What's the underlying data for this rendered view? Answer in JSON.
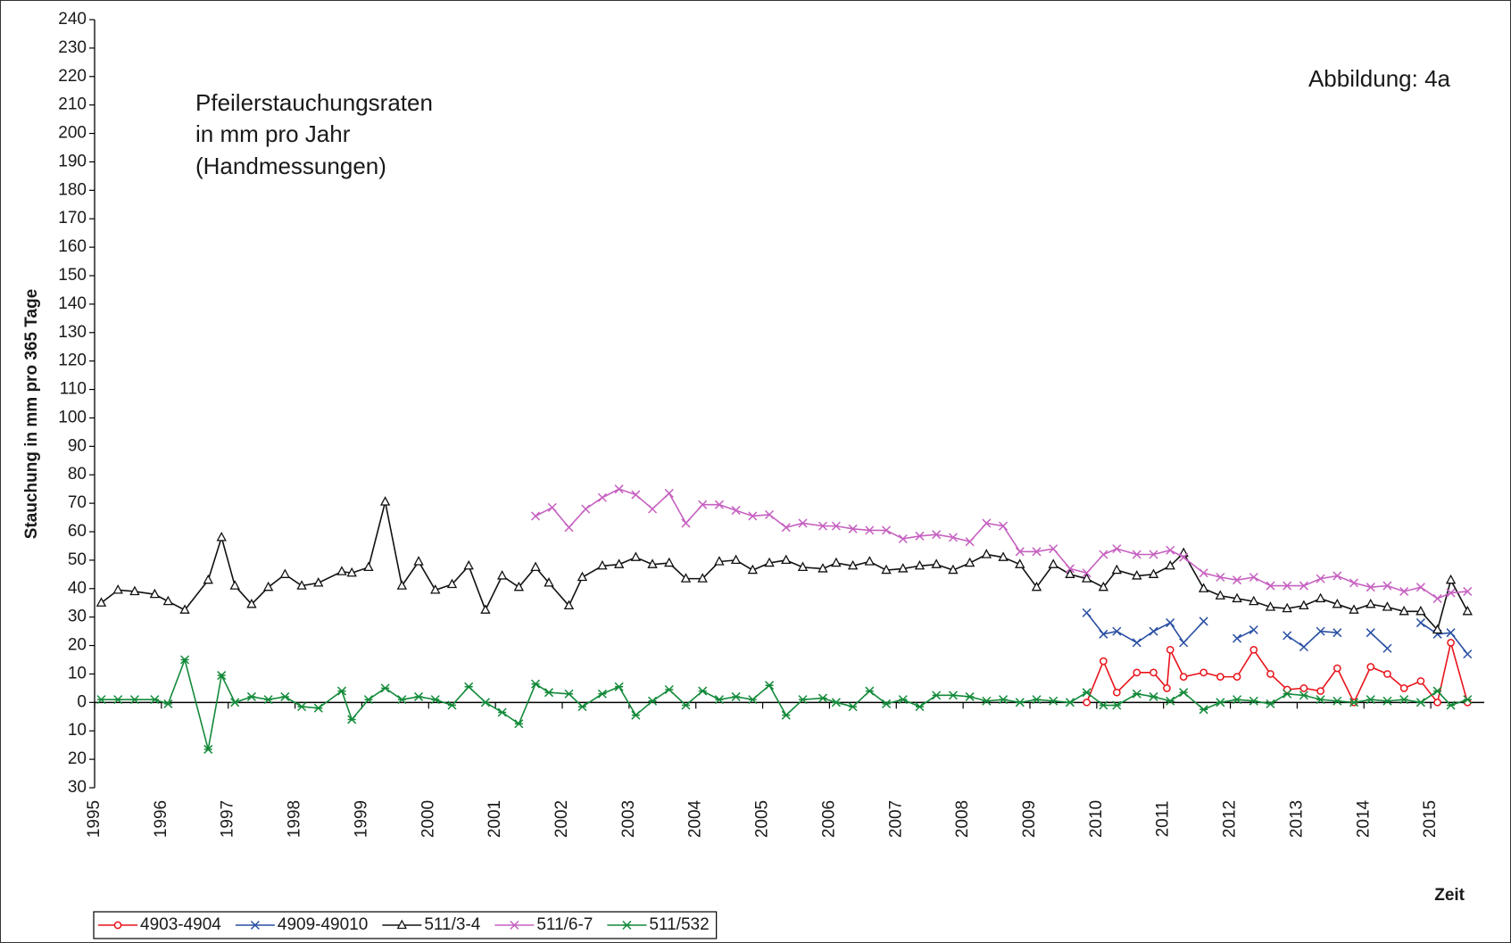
{
  "chart_data": {
    "type": "line",
    "annotation": [
      "Pfeilerstauchungsraten",
      "in mm pro Jahr",
      "(Handmessungen)"
    ],
    "figure_label": "Abbildung:  4a",
    "y_label": "Stauchung in mm pro 365 Tage",
    "x_label": "Zeit",
    "xlim": [
      1995,
      2015.8
    ],
    "xticks": [
      1995,
      1996,
      1997,
      1998,
      1999,
      2000,
      2001,
      2002,
      2003,
      2004,
      2005,
      2006,
      2007,
      2008,
      2009,
      2010,
      2011,
      2012,
      2013,
      2014,
      2015
    ],
    "ylim": [
      -30,
      240
    ],
    "yticks": [
      {
        "value": -30,
        "label": "30"
      },
      {
        "value": -20,
        "label": "20"
      },
      {
        "value": -10,
        "label": "10"
      },
      0,
      10,
      20,
      30,
      40,
      50,
      60,
      70,
      80,
      90,
      100,
      110,
      120,
      130,
      140,
      150,
      160,
      170,
      180,
      190,
      200,
      210,
      220,
      230,
      240
    ],
    "legend": "bottom-left",
    "series": [
      {
        "name": "4903-4904",
        "color": "#e8141b",
        "marker": "circle",
        "x": [
          2009.85,
          2010.1,
          2010.3,
          2010.6,
          2010.85,
          2011.05,
          2011.1,
          2011.3,
          2011.6,
          2011.85,
          2012.1,
          2012.35,
          2012.6,
          2012.85,
          2013.1,
          2013.35,
          2013.6,
          2013.85,
          2014.1,
          2014.35,
          2014.6,
          2014.85,
          2015.1,
          2015.3,
          2015.55
        ],
        "values": [
          0,
          14.5,
          3.5,
          10.5,
          10.5,
          5,
          18.5,
          9,
          10.5,
          9,
          9,
          18.5,
          10,
          4.5,
          5,
          4,
          12,
          0,
          12.5,
          10,
          5,
          7.5,
          0,
          21,
          0
        ]
      },
      {
        "name": "4909-49010",
        "color": "#2a4fa3",
        "marker": "x",
        "x": [
          2009.85,
          2010.1,
          2010.3,
          2010.6,
          2010.85,
          2011.1,
          2011.3,
          2011.6,
          2011.85,
          2012.1,
          2012.35,
          2012.6,
          2012.85,
          2013.1,
          2013.35,
          2013.6,
          2013.85,
          2014.1,
          2014.35,
          2014.6,
          2014.85,
          2015.1,
          2015.3,
          2015.55
        ],
        "values": [
          31.5,
          24,
          25,
          21,
          25,
          28,
          21,
          28.5,
          null,
          22.5,
          25.5,
          null,
          23.5,
          19.5,
          25,
          24.5,
          null,
          24.5,
          19,
          null,
          28,
          24,
          24.5,
          17
        ]
      },
      {
        "name": "511/3-4",
        "color": "#111111",
        "marker": "triangle",
        "x": [
          1995.1,
          1995.35,
          1995.6,
          1995.9,
          1996.1,
          1996.35,
          1996.7,
          1996.9,
          1997.1,
          1997.35,
          1997.6,
          1997.85,
          1998.1,
          1998.35,
          1998.7,
          1998.85,
          1999.1,
          1999.35,
          1999.6,
          1999.85,
          2000.1,
          2000.35,
          2000.6,
          2000.85,
          2001.1,
          2001.35,
          2001.6,
          2001.8,
          2002.1,
          2002.3,
          2002.6,
          2002.85,
          2003.1,
          2003.35,
          2003.6,
          2003.85,
          2004.1,
          2004.35,
          2004.6,
          2004.85,
          2005.1,
          2005.35,
          2005.6,
          2005.9,
          2006.1,
          2006.35,
          2006.6,
          2006.85,
          2007.1,
          2007.35,
          2007.6,
          2007.85,
          2008.1,
          2008.35,
          2008.6,
          2008.85,
          2009.1,
          2009.35,
          2009.6,
          2009.85,
          2010.1,
          2010.3,
          2010.6,
          2010.85,
          2011.1,
          2011.3,
          2011.6,
          2011.85,
          2012.1,
          2012.35,
          2012.6,
          2012.85,
          2013.1,
          2013.35,
          2013.6,
          2013.85,
          2014.1,
          2014.35,
          2014.6,
          2014.85,
          2015.1,
          2015.3,
          2015.55
        ],
        "values": [
          35,
          39.5,
          39,
          38,
          35.5,
          32.5,
          43,
          58,
          41,
          34.5,
          40.5,
          45,
          41,
          42,
          46,
          45.5,
          47.5,
          70.5,
          41,
          49.5,
          39.5,
          41.5,
          48,
          32.5,
          44.5,
          40.5,
          47.5,
          42,
          34,
          44,
          48,
          48.5,
          51,
          48.5,
          49,
          43.5,
          43.5,
          49.5,
          50,
          46.5,
          49,
          50,
          47.5,
          47,
          49,
          48,
          49.5,
          46.5,
          47,
          48,
          48.5,
          46.5,
          49,
          52,
          51,
          48.5,
          40.5,
          48.5,
          45,
          43.5,
          40.5,
          46.5,
          44.5,
          45,
          48,
          52.5,
          40,
          37.5,
          36.5,
          35.5,
          33.5,
          33,
          34,
          36.5,
          34.5,
          32.5,
          34.5,
          33.5,
          32,
          32,
          25.5,
          43,
          32
        ]
      },
      {
        "name": "511/6-7",
        "color": "#c660c0",
        "marker": "x",
        "x": [
          2001.6,
          2001.85,
          2002.1,
          2002.35,
          2002.6,
          2002.85,
          2003.1,
          2003.35,
          2003.6,
          2003.85,
          2004.1,
          2004.35,
          2004.6,
          2004.85,
          2005.1,
          2005.35,
          2005.6,
          2005.9,
          2006.1,
          2006.35,
          2006.6,
          2006.85,
          2007.1,
          2007.35,
          2007.6,
          2007.85,
          2008.1,
          2008.35,
          2008.6,
          2008.85,
          2009.1,
          2009.35,
          2009.6,
          2009.85,
          2010.1,
          2010.3,
          2010.6,
          2010.85,
          2011.1,
          2011.3,
          2011.6,
          2011.85,
          2012.1,
          2012.35,
          2012.6,
          2012.85,
          2013.1,
          2013.35,
          2013.6,
          2013.85,
          2014.1,
          2014.35,
          2014.6,
          2014.85,
          2015.1,
          2015.3,
          2015.55
        ],
        "values": [
          65.5,
          68.5,
          61.5,
          68,
          72,
          75,
          73,
          68,
          73.5,
          63,
          69.5,
          69.5,
          67.5,
          65.5,
          66,
          61.5,
          63,
          62,
          62,
          61,
          60.5,
          60.5,
          57.5,
          58.5,
          59,
          58,
          56.5,
          63,
          62,
          53,
          53,
          54,
          47,
          45.5,
          52,
          54,
          52,
          52,
          53.5,
          51,
          45.5,
          44,
          43,
          44,
          41,
          41,
          41,
          43.5,
          44.5,
          42,
          40.5,
          41,
          39,
          40.5,
          36.5,
          38.5,
          39
        ]
      },
      {
        "name": "511/532",
        "color": "#138a3a",
        "marker": "star",
        "x": [
          1995.1,
          1995.35,
          1995.6,
          1995.9,
          1996.1,
          1996.35,
          1996.7,
          1996.9,
          1997.1,
          1997.35,
          1997.6,
          1997.85,
          1998.1,
          1998.35,
          1998.7,
          1998.85,
          1999.1,
          1999.35,
          1999.6,
          1999.85,
          2000.1,
          2000.35,
          2000.6,
          2000.85,
          2001.1,
          2001.35,
          2001.6,
          2001.8,
          2002.1,
          2002.3,
          2002.6,
          2002.85,
          2003.1,
          2003.35,
          2003.6,
          2003.85,
          2004.1,
          2004.35,
          2004.6,
          2004.85,
          2005.1,
          2005.35,
          2005.6,
          2005.9,
          2006.1,
          2006.35,
          2006.6,
          2006.85,
          2007.1,
          2007.35,
          2007.6,
          2007.85,
          2008.1,
          2008.35,
          2008.6,
          2008.85,
          2009.1,
          2009.35,
          2009.6,
          2009.85,
          2010.1,
          2010.3,
          2010.6,
          2010.85,
          2011.1,
          2011.3,
          2011.6,
          2011.85,
          2012.1,
          2012.35,
          2012.6,
          2012.85,
          2013.1,
          2013.35,
          2013.6,
          2013.85,
          2014.1,
          2014.35,
          2014.6,
          2014.85,
          2015.1,
          2015.3,
          2015.55
        ],
        "values": [
          1,
          1,
          1,
          1,
          -0.5,
          15,
          -16.5,
          9.5,
          0,
          2,
          1,
          2,
          -1.5,
          -2,
          4,
          -6,
          1,
          5,
          1,
          2,
          1,
          -1,
          5.5,
          0,
          -3.5,
          -7.5,
          6.5,
          3.5,
          3,
          -1.5,
          3,
          5.5,
          -4.5,
          0.5,
          4.5,
          -1,
          4,
          1,
          2,
          1,
          6,
          -4.5,
          1,
          1.5,
          0,
          -1.5,
          4,
          -0.5,
          1,
          -1.5,
          2.5,
          2.5,
          2,
          0.5,
          1,
          0,
          1,
          0.5,
          0,
          3.5,
          -1,
          -1,
          3,
          2,
          0.5,
          3.5,
          -2.5,
          0,
          1,
          0.5,
          -0.5,
          3,
          2.5,
          1,
          0.5,
          0,
          1,
          0.5,
          1,
          0,
          4,
          -1,
          1
        ]
      }
    ]
  }
}
